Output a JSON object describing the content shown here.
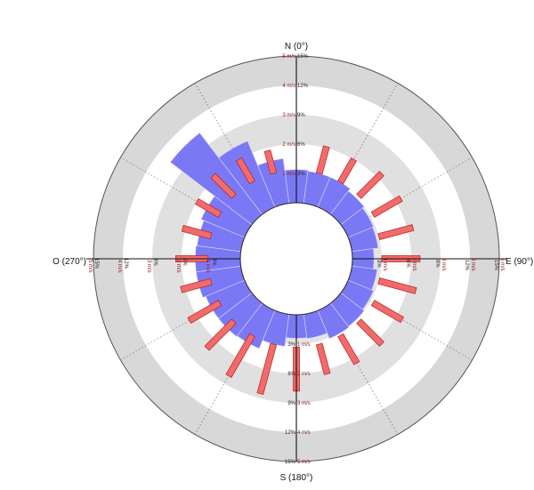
{
  "chart_data": {
    "type": "polar-bar",
    "cardinal_labels": {
      "north": "N (0°)",
      "east": "E (90°)",
      "south": "S (180°)",
      "west": "O (270°)"
    },
    "frequency_ticks": [
      "3%",
      "6%",
      "9%",
      "12%",
      "15%"
    ],
    "speed_ticks": [
      "1 m/s",
      "2 m/s",
      "3 m/s",
      "4 m/s",
      "5 m/s"
    ],
    "frequency_max": 15,
    "speed_max": 5,
    "sector_width_deg": 15,
    "grid": true,
    "series": [
      {
        "kind": "frequency",
        "unit": "%",
        "color": "#7b78f5",
        "directions_deg": [
          0,
          15,
          30,
          45,
          60,
          75,
          90,
          105,
          120,
          135,
          150,
          165,
          180,
          195,
          210,
          225,
          240,
          255,
          270,
          285,
          300,
          315,
          330,
          345
        ],
        "values": [
          3.4,
          3.3,
          3.3,
          3.0,
          2.8,
          2.7,
          2.2,
          2.6,
          2.8,
          3.0,
          3.1,
          2.5,
          2.4,
          3.3,
          4.2,
          4.3,
          4.3,
          4.6,
          4.6,
          4.5,
          4.8,
          10.5,
          7.3,
          4.6
        ]
      },
      {
        "kind": "speed",
        "unit": "m/s",
        "color": "#f26b6b",
        "directions_deg": [
          15,
          30,
          45,
          60,
          75,
          90,
          105,
          120,
          135,
          150,
          165,
          180,
          195,
          210,
          225,
          240,
          255,
          270,
          285,
          300,
          315,
          330,
          345
        ],
        "start": [
          1.1,
          1.1,
          1.1,
          1.1,
          1.0,
          1.0,
          1.0,
          1.1,
          1.1,
          1.1,
          1.1,
          1.1,
          1.1,
          1.1,
          1.1,
          1.1,
          1.1,
          1.1,
          1.1,
          1.1,
          1.1,
          1.1,
          1.1
        ],
        "values": [
          2.05,
          2.0,
          2.2,
          2.2,
          2.2,
          2.3,
          2.3,
          2.25,
          2.2,
          2.2,
          2.15,
          2.6,
          2.85,
          2.7,
          2.4,
          2.3,
          2.15,
          2.2,
          2.1,
          2.0,
          2.1,
          2.0,
          1.9
        ]
      }
    ]
  }
}
